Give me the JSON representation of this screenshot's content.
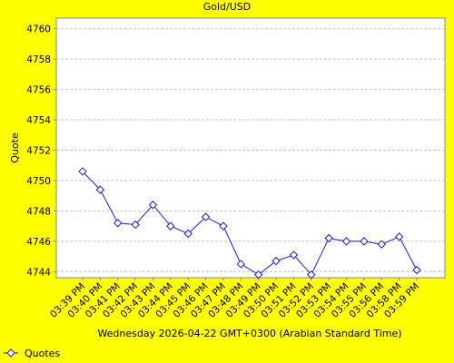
{
  "chart_data": {
    "type": "line",
    "title": "Gold/USD",
    "x_label": "Wednesday 2026-04-22 GMT+0300 (Arabian Standard Time)",
    "y_label": "Quote",
    "categories": [
      "03:39 PM",
      "03:40 PM",
      "03:41 PM",
      "03:42 PM",
      "03:43 PM",
      "03:44 PM",
      "03:45 PM",
      "03:46 PM",
      "03:47 PM",
      "03:48 PM",
      "03:49 PM",
      "03:50 PM",
      "03:51 PM",
      "03:52 PM",
      "03:53 PM",
      "03:54 PM",
      "03:55 PM",
      "03:56 PM",
      "03:58 PM",
      "03:59 PM"
    ],
    "series": [
      {
        "name": "Quotes",
        "color": "#1a1ad6",
        "values": [
          4750.6,
          4749.4,
          4747.2,
          4747.1,
          4748.4,
          4747.0,
          4746.5,
          4747.6,
          4747.0,
          4744.5,
          4743.8,
          4744.7,
          4745.1,
          4743.8,
          4746.2,
          4746.0,
          4746.0,
          4745.8,
          4746.3,
          4744.1
        ]
      }
    ],
    "ylim": [
      4743.6,
      4760.7
    ],
    "yticks": [
      4744,
      4746,
      4748,
      4750,
      4752,
      4754,
      4756,
      4758,
      4760
    ],
    "grid": true,
    "legend": "bottom-left"
  }
}
